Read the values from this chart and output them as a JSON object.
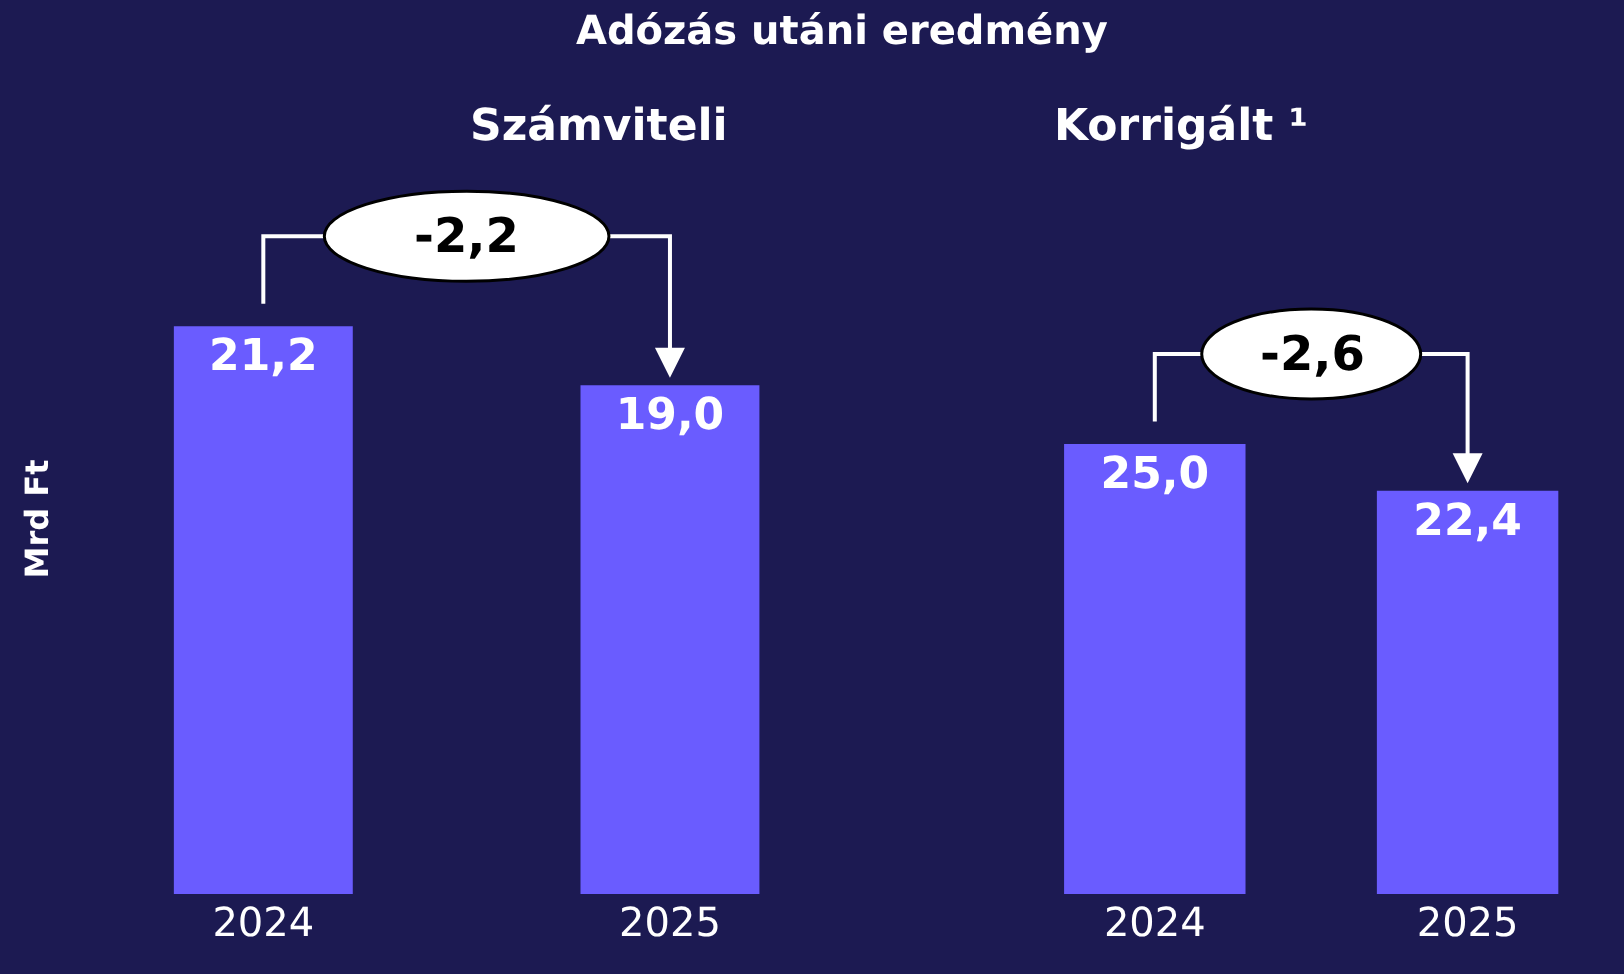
{
  "chart_data": [
    {
      "type": "bar",
      "title": "Adózás utáni eredmény",
      "subtitle": "Számviteli",
      "ylabel": "Mrd Ft",
      "categories": [
        "2024",
        "2025"
      ],
      "values": [
        21.2,
        19.0
      ],
      "value_labels": [
        "21,2",
        "19,0"
      ],
      "color": "#6a5cff",
      "tick_labels": "x",
      "grid": false,
      "annotations": [
        "-2,2"
      ]
    },
    {
      "type": "bar",
      "title": "Korrigált ¹",
      "categories": [
        "2024",
        "2025"
      ],
      "values": [
        25.0,
        22.4
      ],
      "value_labels": [
        "25,0",
        "22,4"
      ],
      "color": "#6a5cff",
      "tick_labels": "x",
      "grid": false,
      "annotations": [
        "-2,6"
      ]
    }
  ]
}
